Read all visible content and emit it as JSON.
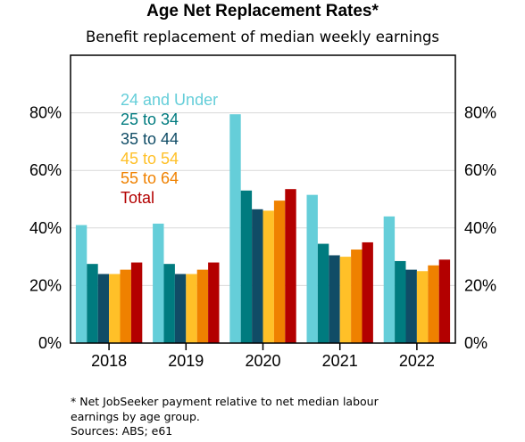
{
  "chart_data": {
    "type": "bar",
    "title": "Age Net Replacement Rates*",
    "subtitle": "Benefit replacement of median weekly earnings",
    "categories": [
      "2018",
      "2019",
      "2020",
      "2021",
      "2022"
    ],
    "series": [
      {
        "name": "24 and Under",
        "color": "#65CED9",
        "values": [
          41,
          41.5,
          79.5,
          51.5,
          44
        ]
      },
      {
        "name": "25 to 34",
        "color": "#007B7F",
        "values": [
          27.5,
          27.5,
          53,
          34.5,
          28.5
        ]
      },
      {
        "name": "35 to 44",
        "color": "#104C66",
        "values": [
          24,
          24,
          46.5,
          30.5,
          25.5
        ]
      },
      {
        "name": "45 to 54",
        "color": "#FFC028",
        "values": [
          24,
          24,
          46,
          30,
          25
        ]
      },
      {
        "name": "55 to 64",
        "color": "#EF8100",
        "values": [
          25.5,
          25.5,
          49.5,
          32.5,
          27
        ]
      },
      {
        "name": "Total",
        "color": "#B30000",
        "values": [
          28,
          28,
          53.5,
          35,
          29
        ]
      }
    ],
    "yticks": [
      "0%",
      "20%",
      "40%",
      "60%",
      "80%"
    ],
    "ylim": [
      0,
      100
    ],
    "grid": true,
    "legend_position": "top-left",
    "footnote": "* Net JobSeeker payment relative to net median labour earnings by age group.",
    "footnote_lines": [
      "* Net JobSeeker payment relative to net median labour",
      "earnings by age group."
    ],
    "sources": "Sources: ABS; e61"
  }
}
